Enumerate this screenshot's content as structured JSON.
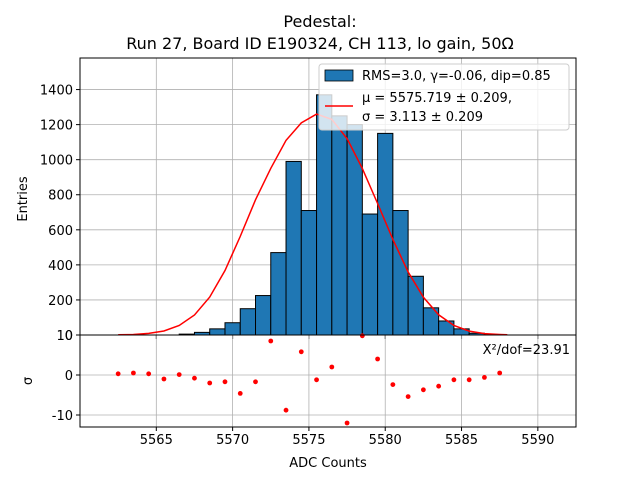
{
  "chart_data": {
    "title": "Pedestal:",
    "subtitle": "Run 27, Board ID E190324, CH 113, lo gain, 50Ω",
    "main": {
      "type": "bar",
      "ylabel": "Entries",
      "xlim": [
        5560,
        5592.5
      ],
      "ylim": [
        0,
        1580
      ],
      "yticks": [
        0,
        200,
        400,
        600,
        800,
        1000,
        1200,
        1400
      ],
      "grid": true,
      "bin_width": 1,
      "bin_left_edges": [
        5562.5,
        5563.5,
        5564.5,
        5565.5,
        5566.5,
        5567.5,
        5568.5,
        5569.5,
        5570.5,
        5571.5,
        5572.5,
        5573.5,
        5574.5,
        5575.5,
        5576.5,
        5577.5,
        5578.5,
        5579.5,
        5580.5,
        5581.5,
        5582.5,
        5583.5,
        5584.5,
        5585.5,
        5586.5,
        5587.5
      ],
      "values": [
        0,
        0,
        0,
        0,
        5,
        15,
        35,
        70,
        150,
        225,
        470,
        990,
        710,
        1370,
        1250,
        1200,
        690,
        1150,
        710,
        335,
        155,
        80,
        35,
        10,
        3,
        0
      ],
      "bar_color": "#1f77b4",
      "legend_position": "top-right",
      "legend": [
        {
          "label": "RMS=3.0, γ=-0.06, dip=0.85",
          "kind": "patch",
          "color": "#1f77b4"
        },
        {
          "label_line1": "μ = 5575.719 ± 0.209,",
          "label_line2": "σ = 3.113 ± 0.209",
          "kind": "line",
          "color": "#ff0000"
        }
      ],
      "fit": {
        "type": "line",
        "name": "μ = 5575.719 ± 0.209, σ = 3.113 ± 0.209",
        "x": [
          5562.5,
          5563.5,
          5564.5,
          5565.5,
          5566.5,
          5567.5,
          5568.5,
          5569.5,
          5570.5,
          5571.5,
          5572.5,
          5573.5,
          5574.5,
          5575.5,
          5576.5,
          5577.5,
          5578.5,
          5579.5,
          5580.5,
          5581.5,
          5582.5,
          5583.5,
          5584.5,
          5585.5,
          5586.5,
          5587.5,
          5588.0
        ],
        "y": [
          1,
          3,
          9,
          23,
          54,
          114,
          216,
          368,
          562,
          771,
          951,
          1110,
          1210,
          1260,
          1230,
          1120,
          950,
          750,
          545,
          360,
          215,
          115,
          55,
          22,
          8,
          3,
          1
        ],
        "color": "#ff0000"
      }
    },
    "residual": {
      "type": "scatter",
      "ylabel": "σ",
      "xlabel": "ADC Counts",
      "ylim": [
        -13,
        10
      ],
      "yticks": [
        -10,
        0,
        10
      ],
      "xticks": [
        5565,
        5570,
        5575,
        5580,
        5585,
        5590
      ],
      "grid": true,
      "annotation": "X²/dof=23.91",
      "x": [
        5562.5,
        5563.5,
        5564.5,
        5565.5,
        5566.5,
        5567.5,
        5568.5,
        5569.5,
        5570.5,
        5571.5,
        5572.5,
        5573.5,
        5574.5,
        5575.5,
        5576.5,
        5577.5,
        5578.5,
        5579.5,
        5580.5,
        5581.5,
        5582.5,
        5583.5,
        5584.5,
        5585.5,
        5586.5,
        5587.5
      ],
      "y": [
        0.3,
        0.5,
        0.3,
        -1.0,
        0.1,
        -0.8,
        -2.0,
        -1.7,
        -4.6,
        -1.7,
        8.5,
        -8.8,
        5.8,
        -1.2,
        2.0,
        -12.0,
        9.8,
        4.0,
        -2.4,
        -5.4,
        -3.7,
        -2.8,
        -1.2,
        -1.2,
        -0.6,
        0.5
      ],
      "color": "#ff0000"
    }
  }
}
